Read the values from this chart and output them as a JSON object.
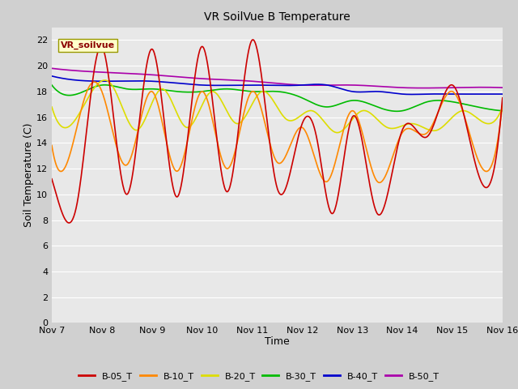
{
  "title": "VR SoilVue B Temperature",
  "xlabel": "Time",
  "ylabel": "Soil Temperature (C)",
  "ylim": [
    0,
    23
  ],
  "yticks": [
    0,
    2,
    4,
    6,
    8,
    10,
    12,
    14,
    16,
    18,
    20,
    22
  ],
  "xtick_labels": [
    "Nov 7",
    "Nov 8",
    "Nov 9",
    "Nov 10",
    "Nov 11",
    "Nov 12",
    "Nov 13",
    "Nov 14",
    "Nov 15",
    "Nov 16"
  ],
  "watermark": "VR_soilvue",
  "fig_bg_color": "#d0d0d0",
  "plot_bg_color": "#e8e8e8",
  "series_colors": {
    "B-05_T": "#cc0000",
    "B-10_T": "#ff8800",
    "B-20_T": "#dddd00",
    "B-30_T": "#00bb00",
    "B-40_T": "#0000cc",
    "B-50_T": "#aa00aa"
  },
  "b05_keypoints": {
    "t": [
      0,
      0.15,
      0.5,
      1.0,
      1.5,
      2.0,
      2.5,
      3.0,
      3.5,
      4.0,
      4.5,
      5.0,
      5.3,
      5.6,
      6.0,
      6.5,
      7.0,
      7.5,
      8.0,
      8.5,
      9.0
    ],
    "v": [
      11.2,
      9.2,
      9.2,
      21.5,
      10.0,
      21.3,
      9.8,
      21.5,
      10.2,
      22.0,
      10.5,
      15.5,
      14.2,
      8.5,
      16.0,
      8.5,
      15.0,
      14.5,
      18.5,
      11.8,
      17.5
    ]
  },
  "b10_keypoints": {
    "t": [
      0,
      0.2,
      0.7,
      1.0,
      1.5,
      2.0,
      2.5,
      3.0,
      3.5,
      4.0,
      4.5,
      5.0,
      5.5,
      6.0,
      6.5,
      7.0,
      7.5,
      8.0,
      8.5,
      9.0
    ],
    "v": [
      13.8,
      11.8,
      18.0,
      18.0,
      12.3,
      18.0,
      11.8,
      18.0,
      12.0,
      18.0,
      12.5,
      15.2,
      11.0,
      16.5,
      11.0,
      14.8,
      14.8,
      18.0,
      12.8,
      17.0
    ]
  },
  "b20_keypoints": {
    "t": [
      0,
      0.3,
      0.8,
      1.2,
      1.7,
      2.2,
      2.7,
      3.2,
      3.7,
      4.2,
      4.7,
      5.2,
      5.7,
      6.2,
      6.7,
      7.2,
      7.7,
      8.2,
      8.7,
      9.0
    ],
    "v": [
      16.8,
      15.2,
      18.0,
      18.5,
      15.0,
      18.2,
      15.2,
      18.0,
      15.5,
      18.0,
      15.8,
      16.5,
      14.8,
      16.5,
      15.2,
      15.5,
      15.0,
      16.5,
      15.5,
      16.8
    ]
  },
  "b30_keypoints": {
    "t": [
      0,
      0.5,
      1.0,
      1.5,
      2.0,
      2.5,
      3.0,
      3.5,
      4.0,
      4.5,
      5.0,
      5.5,
      6.0,
      6.5,
      7.0,
      7.5,
      8.0,
      8.5,
      9.0
    ],
    "v": [
      18.5,
      17.8,
      18.5,
      18.2,
      18.2,
      18.0,
      18.0,
      18.2,
      18.0,
      18.0,
      17.5,
      16.8,
      17.3,
      16.8,
      16.5,
      17.2,
      17.2,
      16.8,
      16.5
    ]
  },
  "b40_keypoints": {
    "t": [
      0,
      1.0,
      2.0,
      3.0,
      4.0,
      5.0,
      5.5,
      6.0,
      6.5,
      7.0,
      7.5,
      8.0,
      8.5,
      9.0
    ],
    "v": [
      19.2,
      18.8,
      18.8,
      18.5,
      18.5,
      18.5,
      18.5,
      18.0,
      18.0,
      17.8,
      17.8,
      17.8,
      17.8,
      17.8
    ]
  },
  "b50_keypoints": {
    "t": [
      0,
      1.0,
      2.0,
      3.0,
      4.0,
      5.0,
      6.0,
      7.0,
      8.0,
      9.0
    ],
    "v": [
      19.8,
      19.5,
      19.3,
      19.0,
      18.8,
      18.5,
      18.5,
      18.3,
      18.3,
      18.3
    ]
  }
}
